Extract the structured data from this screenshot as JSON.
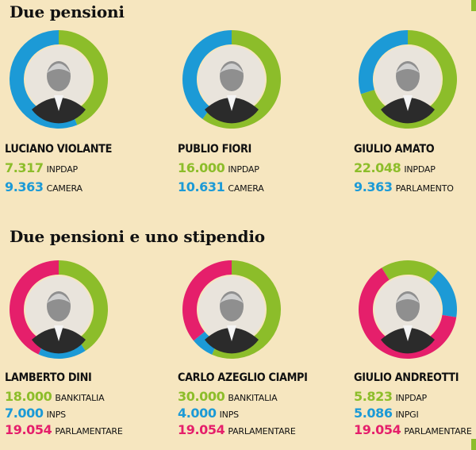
{
  "colors": {
    "green": "#8cbd2a",
    "blue": "#1c9ad6",
    "pink": "#e51f6b",
    "background": "#f6e6bf"
  },
  "section1": {
    "title": "Due pensioni"
  },
  "section2": {
    "title": "Due pensioni e uno stipendio"
  },
  "chart_data": [
    {
      "type": "pie",
      "name": "LUCIANO VIOLANTE",
      "slices": [
        {
          "label": "INPDAP",
          "value": 7317,
          "display": "7.317",
          "color": "green"
        },
        {
          "label": "CAMERA",
          "value": 9363,
          "display": "9.363",
          "color": "blue"
        }
      ]
    },
    {
      "type": "pie",
      "name": "PUBLIO FIORI",
      "slices": [
        {
          "label": "INPDAP",
          "value": 16000,
          "display": "16.000",
          "color": "green"
        },
        {
          "label": "CAMERA",
          "value": 10631,
          "display": "10.631",
          "color": "blue"
        }
      ]
    },
    {
      "type": "pie",
      "name": "GIULIO AMATO",
      "slices": [
        {
          "label": "INPDAP",
          "value": 22048,
          "display": "22.048",
          "color": "green"
        },
        {
          "label": "PARLAMENTO",
          "value": 9363,
          "display": "9.363",
          "color": "blue"
        }
      ]
    },
    {
      "type": "pie",
      "name": "LAMBERTO DINI",
      "slices": [
        {
          "label": "BANKITALIA",
          "value": 18000,
          "display": "18.000",
          "color": "green"
        },
        {
          "label": "INPS",
          "value": 7000,
          "display": "7.000",
          "color": "blue"
        },
        {
          "label": "PARLAMENTARE",
          "value": 19054,
          "display": "19.054",
          "color": "pink"
        }
      ]
    },
    {
      "type": "pie",
      "name": "CARLO AZEGLIO CIAMPI",
      "slices": [
        {
          "label": "BANKITALIA",
          "value": 30000,
          "display": "30.000",
          "color": "green"
        },
        {
          "label": "INPS",
          "value": 4000,
          "display": "4.000",
          "color": "blue"
        },
        {
          "label": "PARLAMENTARE",
          "value": 19054,
          "display": "19.054",
          "color": "pink"
        }
      ]
    },
    {
      "type": "pie",
      "name": "GIULIO ANDREOTTI",
      "slices": [
        {
          "label": "INPDAP",
          "value": 5823,
          "display": "5.823",
          "color": "green"
        },
        {
          "label": "INPGI",
          "value": 5086,
          "display": "5.086",
          "color": "blue"
        },
        {
          "label": "PARLAMENTARE",
          "value": 19054,
          "display": "19.054",
          "color": "pink"
        }
      ]
    }
  ]
}
